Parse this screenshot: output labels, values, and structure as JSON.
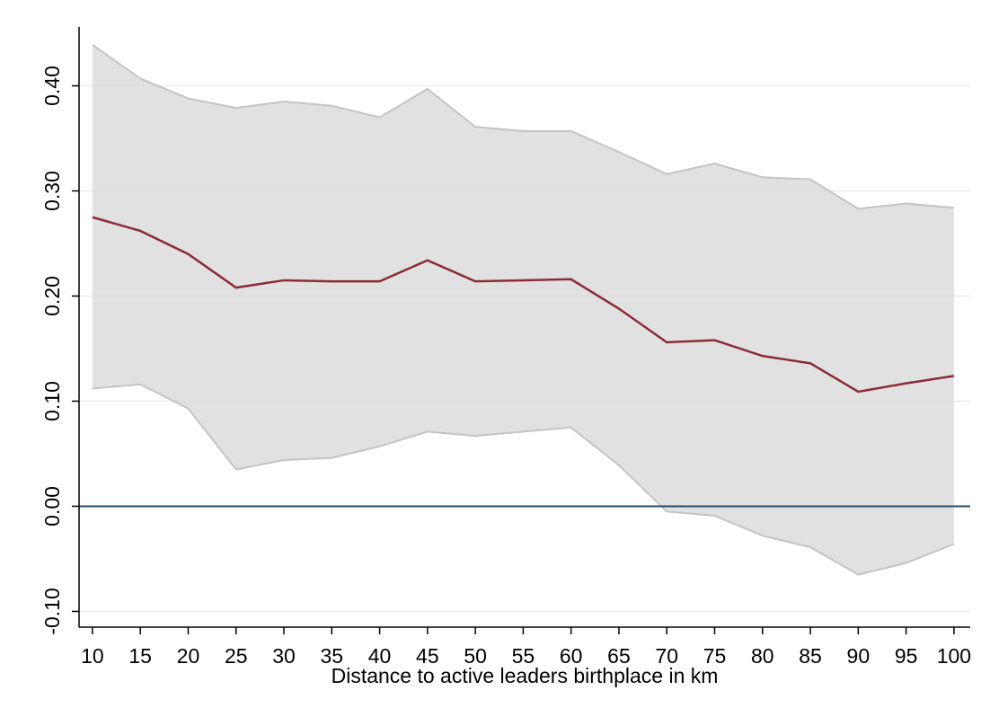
{
  "chart_data": {
    "type": "line_band",
    "x_label": "Distance to active leaders birthplace in km",
    "x": [
      10,
      15,
      20,
      25,
      30,
      35,
      40,
      45,
      50,
      55,
      60,
      65,
      70,
      75,
      80,
      85,
      90,
      95,
      100
    ],
    "values": [
      0.275,
      0.262,
      0.24,
      0.208,
      0.215,
      0.214,
      0.214,
      0.234,
      0.214,
      0.215,
      0.216,
      0.188,
      0.156,
      0.158,
      0.143,
      0.136,
      0.109,
      0.117,
      0.124
    ],
    "upper": [
      0.439,
      0.407,
      0.388,
      0.379,
      0.385,
      0.381,
      0.37,
      0.397,
      0.361,
      0.357,
      0.357,
      0.337,
      0.316,
      0.326,
      0.313,
      0.311,
      0.283,
      0.288,
      0.284
    ],
    "lower": [
      0.112,
      0.116,
      0.093,
      0.035,
      0.044,
      0.046,
      0.057,
      0.071,
      0.067,
      0.071,
      0.075,
      0.039,
      -0.005,
      -0.009,
      -0.028,
      -0.039,
      -0.065,
      -0.054,
      -0.036
    ],
    "color": "#8b2c35",
    "band_color": "#dcdcdc",
    "band_edge_color": "#c4c4c4",
    "reference_line": 0,
    "reference_color": "#1f4e6e",
    "xlim": [
      8.6,
      101.7
    ],
    "ylim": [
      -0.115,
      0.456
    ],
    "xticks": [
      10,
      15,
      20,
      25,
      30,
      35,
      40,
      45,
      50,
      55,
      60,
      65,
      70,
      75,
      80,
      85,
      90,
      95,
      100
    ],
    "yticks": [
      {
        "value": -0.1,
        "label": "-0.10"
      },
      {
        "value": 0,
        "label": "0.00"
      },
      {
        "value": 0.1,
        "label": "0.10"
      },
      {
        "value": 0.2,
        "label": "0.20"
      },
      {
        "value": 0.3,
        "label": "0.30"
      },
      {
        "value": 0.4,
        "label": "0.40"
      }
    ],
    "grid": true
  }
}
